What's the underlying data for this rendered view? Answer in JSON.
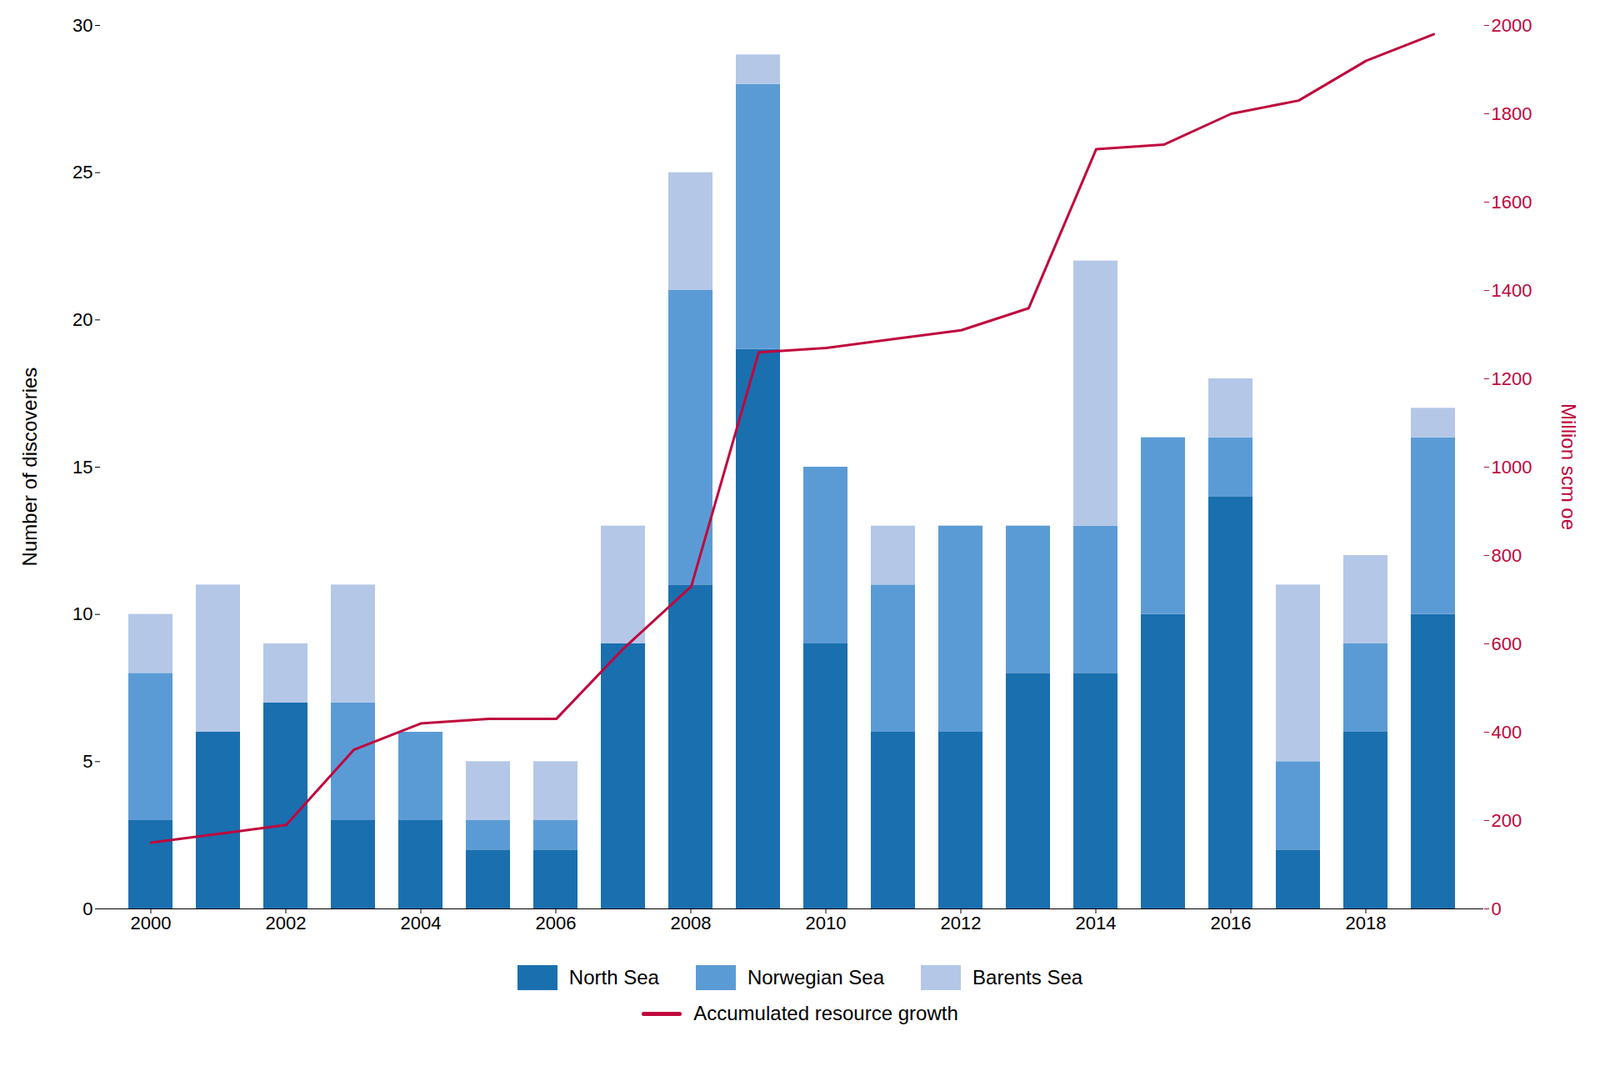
{
  "chart_data": {
    "type": "bar",
    "stacked": true,
    "grid": false,
    "legend": "bottom",
    "x": [
      2000,
      2001,
      2002,
      2003,
      2004,
      2005,
      2006,
      2007,
      2008,
      2009,
      2010,
      2011,
      2012,
      2013,
      2014,
      2015,
      2016,
      2017,
      2018,
      2019
    ],
    "xticks": [
      2000,
      2002,
      2004,
      2006,
      2008,
      2010,
      2012,
      2014,
      2016,
      2018
    ],
    "ylabel": "Number of discoveries",
    "ylim": [
      0,
      30
    ],
    "yticks": [
      0,
      5,
      10,
      15,
      20,
      25,
      30
    ],
    "y2label": "Million scm oe",
    "y2lim": [
      0,
      2000
    ],
    "y2ticks": [
      0,
      200,
      400,
      600,
      800,
      1000,
      1200,
      1400,
      1600,
      1800,
      2000
    ],
    "series": [
      {
        "name": "North Sea",
        "type": "bar",
        "color": "#1a6faf",
        "values": [
          3,
          6,
          7,
          3,
          3,
          2,
          2,
          9,
          11,
          19,
          9,
          6,
          6,
          8,
          8,
          10,
          14,
          2,
          6,
          10
        ]
      },
      {
        "name": "Norwegian Sea",
        "type": "bar",
        "color": "#5b9bd5",
        "values": [
          5,
          0,
          0,
          4,
          3,
          1,
          1,
          0,
          10,
          9,
          6,
          5,
          7,
          5,
          5,
          6,
          2,
          3,
          3,
          6
        ]
      },
      {
        "name": "Barents Sea",
        "type": "bar",
        "color": "#b4c7e7",
        "values": [
          2,
          5,
          2,
          4,
          0,
          2,
          2,
          4,
          4,
          1,
          0,
          2,
          0,
          0,
          9,
          0,
          2,
          6,
          3,
          1
        ]
      },
      {
        "name": "Accumulated resource growth",
        "type": "line",
        "axis": "y2",
        "color": "#c0073d",
        "values": [
          150,
          170,
          190,
          360,
          420,
          430,
          430,
          590,
          730,
          1260,
          1270,
          1290,
          1310,
          1360,
          1720,
          1730,
          1800,
          1830,
          1920,
          1980
        ]
      }
    ]
  }
}
